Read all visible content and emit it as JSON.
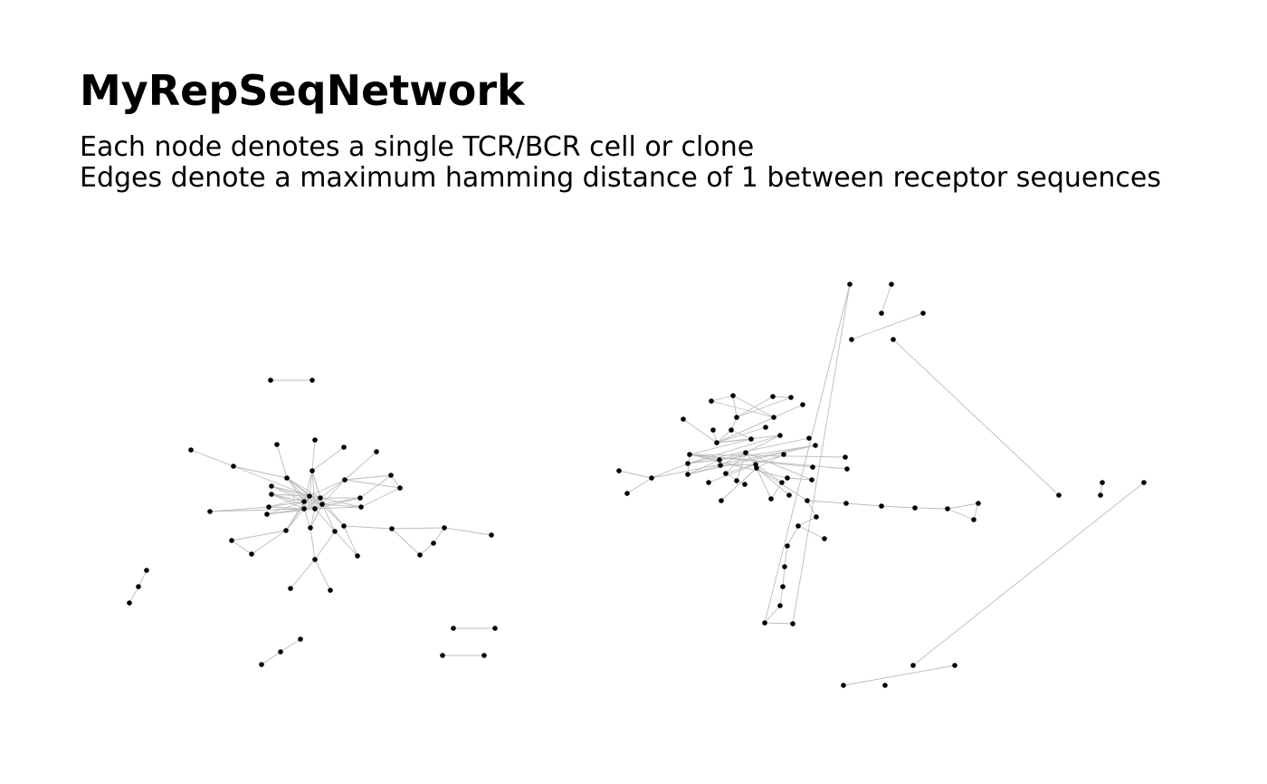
{
  "title": "MyRepSeqNetwork",
  "subtitle_lines": [
    "Each node denotes a single TCR/BCR cell or clone",
    "Edges denote a maximum hamming distance of 1 between receptor sequences"
  ],
  "colors": {
    "node": "#000000",
    "edge": "#bcbcbc",
    "background": "#ffffff"
  }
}
